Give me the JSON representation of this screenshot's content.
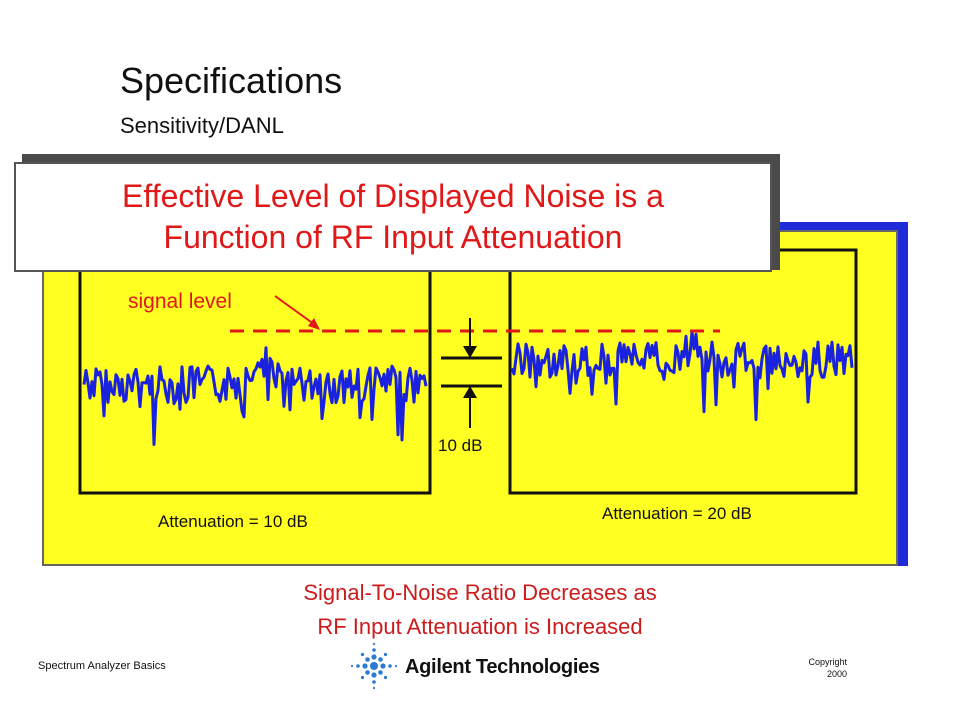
{
  "title": "Specifications",
  "subtitle": "Sensitivity/DANL",
  "callout": {
    "line1": "Effective Level of Displayed Noise is a",
    "line2": "Function of RF Input Attenuation"
  },
  "diagram": {
    "signal_label": "signal level",
    "step_label": "10 dB",
    "left_label": "Attenuation = 10 dB",
    "right_label": "Attenuation = 20 dB"
  },
  "caption": {
    "line1": "Signal-To-Noise Ratio Decreases as",
    "line2": "RF Input Attenuation is Increased"
  },
  "footer": {
    "left": "Spectrum Analyzer Basics",
    "brand": "Agilent Technologies",
    "copyright_1": "Copyright",
    "copyright_2": "2000"
  },
  "colors": {
    "noise": "#1a22e0",
    "signal": "#e01818",
    "panel": "#ffff22",
    "panel_shadow": "#1f2bd6"
  }
}
